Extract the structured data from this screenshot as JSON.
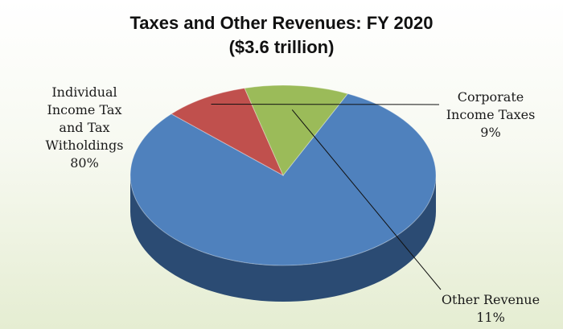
{
  "chart_data": {
    "type": "pie",
    "title": "Taxes and Other Revenues: FY 2020",
    "subtitle": "($3.6 trillion)",
    "slices": [
      {
        "label_lines": [
          "Individual",
          "Income Tax",
          "and Tax",
          "Witholdings"
        ],
        "value": 80,
        "value_label": "80%",
        "color": "#4f81bd",
        "side_color": "#2b4b73"
      },
      {
        "label_lines": [
          "Corporate",
          "Income Taxes"
        ],
        "value": 9,
        "value_label": "9%",
        "color": "#c0504d",
        "side_color": "#7d2f2d"
      },
      {
        "label_lines": [
          "Other Revenue"
        ],
        "value": 11,
        "value_label": "11%",
        "color": "#9bbb59",
        "side_color": "#4f6b2d"
      }
    ]
  }
}
